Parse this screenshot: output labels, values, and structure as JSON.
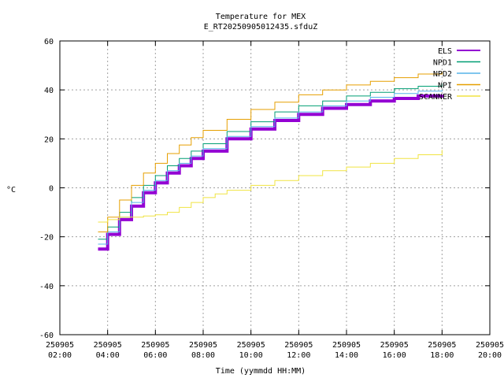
{
  "chart_data": {
    "type": "line",
    "title": "Temperature for MEX",
    "subtitle": "E_RT20250905012435.sfduZ",
    "xlabel": "Time (yymmdd HH:MM)",
    "ylabel": "°C",
    "xlim": [
      2,
      20
    ],
    "ylim": [
      -60,
      60
    ],
    "grid": true,
    "legend_position": "top-right",
    "xticks": [
      {
        "value": 2,
        "date": "250905",
        "time": "02:00"
      },
      {
        "value": 4,
        "date": "250905",
        "time": "04:00"
      },
      {
        "value": 6,
        "date": "250905",
        "time": "06:00"
      },
      {
        "value": 8,
        "date": "250905",
        "time": "08:00"
      },
      {
        "value": 10,
        "date": "250905",
        "time": "10:00"
      },
      {
        "value": 12,
        "date": "250905",
        "time": "12:00"
      },
      {
        "value": 14,
        "date": "250905",
        "time": "14:00"
      },
      {
        "value": 16,
        "date": "250905",
        "time": "16:00"
      },
      {
        "value": 18,
        "date": "250905",
        "time": "18:00"
      },
      {
        "value": 20,
        "date": "250905",
        "time": "20:00"
      }
    ],
    "yticks": [
      -60,
      -40,
      -20,
      0,
      20,
      40,
      60
    ],
    "series": [
      {
        "name": "ELS",
        "color": "#9400d3",
        "width": 4,
        "x": [
          3.6,
          4.0,
          4.5,
          5.0,
          5.5,
          6.0,
          6.5,
          7.0,
          7.5,
          8.0,
          9.0,
          10.0,
          11.0,
          12.0,
          13.0,
          14.0,
          15.0,
          16.0,
          17.0,
          18.0
        ],
        "y": [
          -25,
          -19,
          -13,
          -7.5,
          -2,
          2,
          6,
          9,
          12,
          15,
          20,
          24,
          27.5,
          30,
          32.5,
          34,
          35.5,
          36.5,
          37.5,
          38
        ]
      },
      {
        "name": "NPD1",
        "color": "#009e73",
        "width": 1,
        "x": [
          3.6,
          4.0,
          4.5,
          5.0,
          5.5,
          6.0,
          6.5,
          7.0,
          7.5,
          8.0,
          9.0,
          10.0,
          11.0,
          12.0,
          13.0,
          14.0,
          15.0,
          16.0,
          17.0,
          18.0
        ],
        "y": [
          -21,
          -16,
          -10,
          -4,
          1,
          5,
          9,
          12,
          15,
          18,
          23,
          27,
          31,
          33.5,
          35.5,
          37.5,
          39,
          40.5,
          41.5,
          42.5
        ]
      },
      {
        "name": "NPD2",
        "color": "#56b4e9",
        "width": 1,
        "x": [
          3.6,
          4.0,
          4.5,
          5.0,
          5.5,
          6.0,
          6.5,
          7.0,
          7.5,
          8.0,
          9.0,
          10.0,
          11.0,
          12.0,
          13.0,
          14.0,
          15.0,
          16.0,
          17.0,
          18.0
        ],
        "y": [
          -23,
          -18,
          -12,
          -6,
          -1,
          3,
          7,
          10,
          13,
          16,
          21,
          25,
          28.5,
          31,
          33.5,
          35.5,
          37,
          38.5,
          39.5,
          40
        ]
      },
      {
        "name": "NPI",
        "color": "#e69f00",
        "width": 1,
        "x": [
          3.6,
          4.0,
          4.5,
          5.0,
          5.5,
          6.0,
          6.5,
          7.0,
          7.5,
          8.0,
          9.0,
          10.0,
          11.0,
          12.0,
          13.0,
          14.0,
          15.0,
          16.0,
          17.0,
          18.0
        ],
        "y": [
          -18,
          -12,
          -5,
          1,
          6,
          10,
          14,
          17.5,
          20.5,
          23.5,
          28,
          32,
          35,
          38,
          40,
          42,
          43.5,
          45,
          46.5,
          47.5
        ]
      },
      {
        "name": "SCANNER",
        "color": "#f0e442",
        "width": 1,
        "x": [
          3.6,
          4.0,
          4.5,
          5.0,
          5.5,
          6.0,
          6.5,
          7.0,
          7.5,
          8.0,
          8.5,
          9.0,
          10.0,
          11.0,
          12.0,
          13.0,
          14.0,
          15.0,
          16.0,
          17.0,
          18.0
        ],
        "y": [
          -14,
          -13,
          -12,
          -12,
          -11.5,
          -11,
          -10,
          -8,
          -6,
          -4,
          -2.5,
          -1,
          1,
          3,
          5,
          7,
          8.5,
          10,
          12,
          13.5,
          15.5
        ]
      }
    ]
  }
}
